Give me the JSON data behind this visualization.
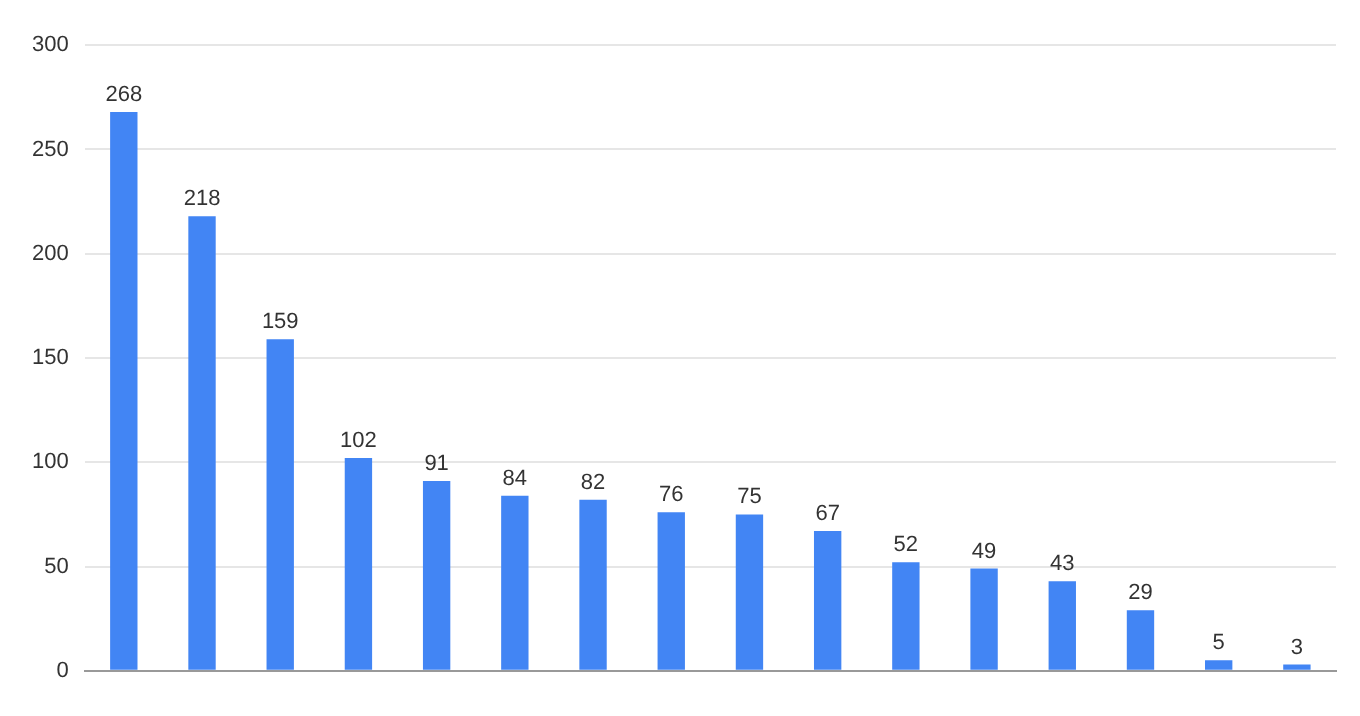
{
  "chart_data": {
    "type": "bar",
    "categories": [
      null,
      null,
      null,
      null,
      null,
      null,
      null,
      null,
      null,
      null,
      null,
      null,
      null,
      null,
      null,
      null
    ],
    "values": [
      268,
      218,
      159,
      102,
      91,
      84,
      82,
      76,
      75,
      67,
      52,
      49,
      43,
      29,
      5,
      3
    ],
    "color": "#4285f4",
    "ylim": [
      0,
      300
    ],
    "yticks": [
      0,
      50,
      100,
      150,
      200,
      250,
      300
    ],
    "grid": "y",
    "data_labels": true
  }
}
